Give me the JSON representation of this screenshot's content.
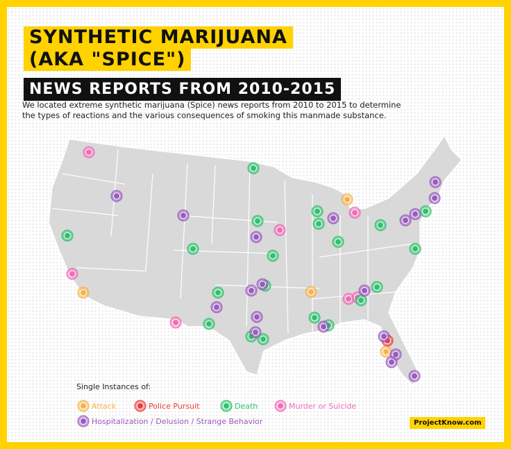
{
  "title_lines": [
    "SYNTHETIC MARIJUANA",
    "(AKA \"SPICE\")"
  ],
  "subtitle": "NEWS REPORTS FROM 2010-2015",
  "description_lines": [
    "We located extreme synthetic marijuana (Spice) news reports from 2010 to 2015 to determine",
    "the types of reactions and the various consequences of smoking this manmade substance."
  ],
  "legend": {
    "heading": "Single Instances of:",
    "items": [
      "Attack",
      "Police Pursuit",
      "Death",
      "Murder or Suicide",
      "Hospitalization / Delusion / Strange Behavior"
    ]
  },
  "credit": "ProjectKnow.com"
}
